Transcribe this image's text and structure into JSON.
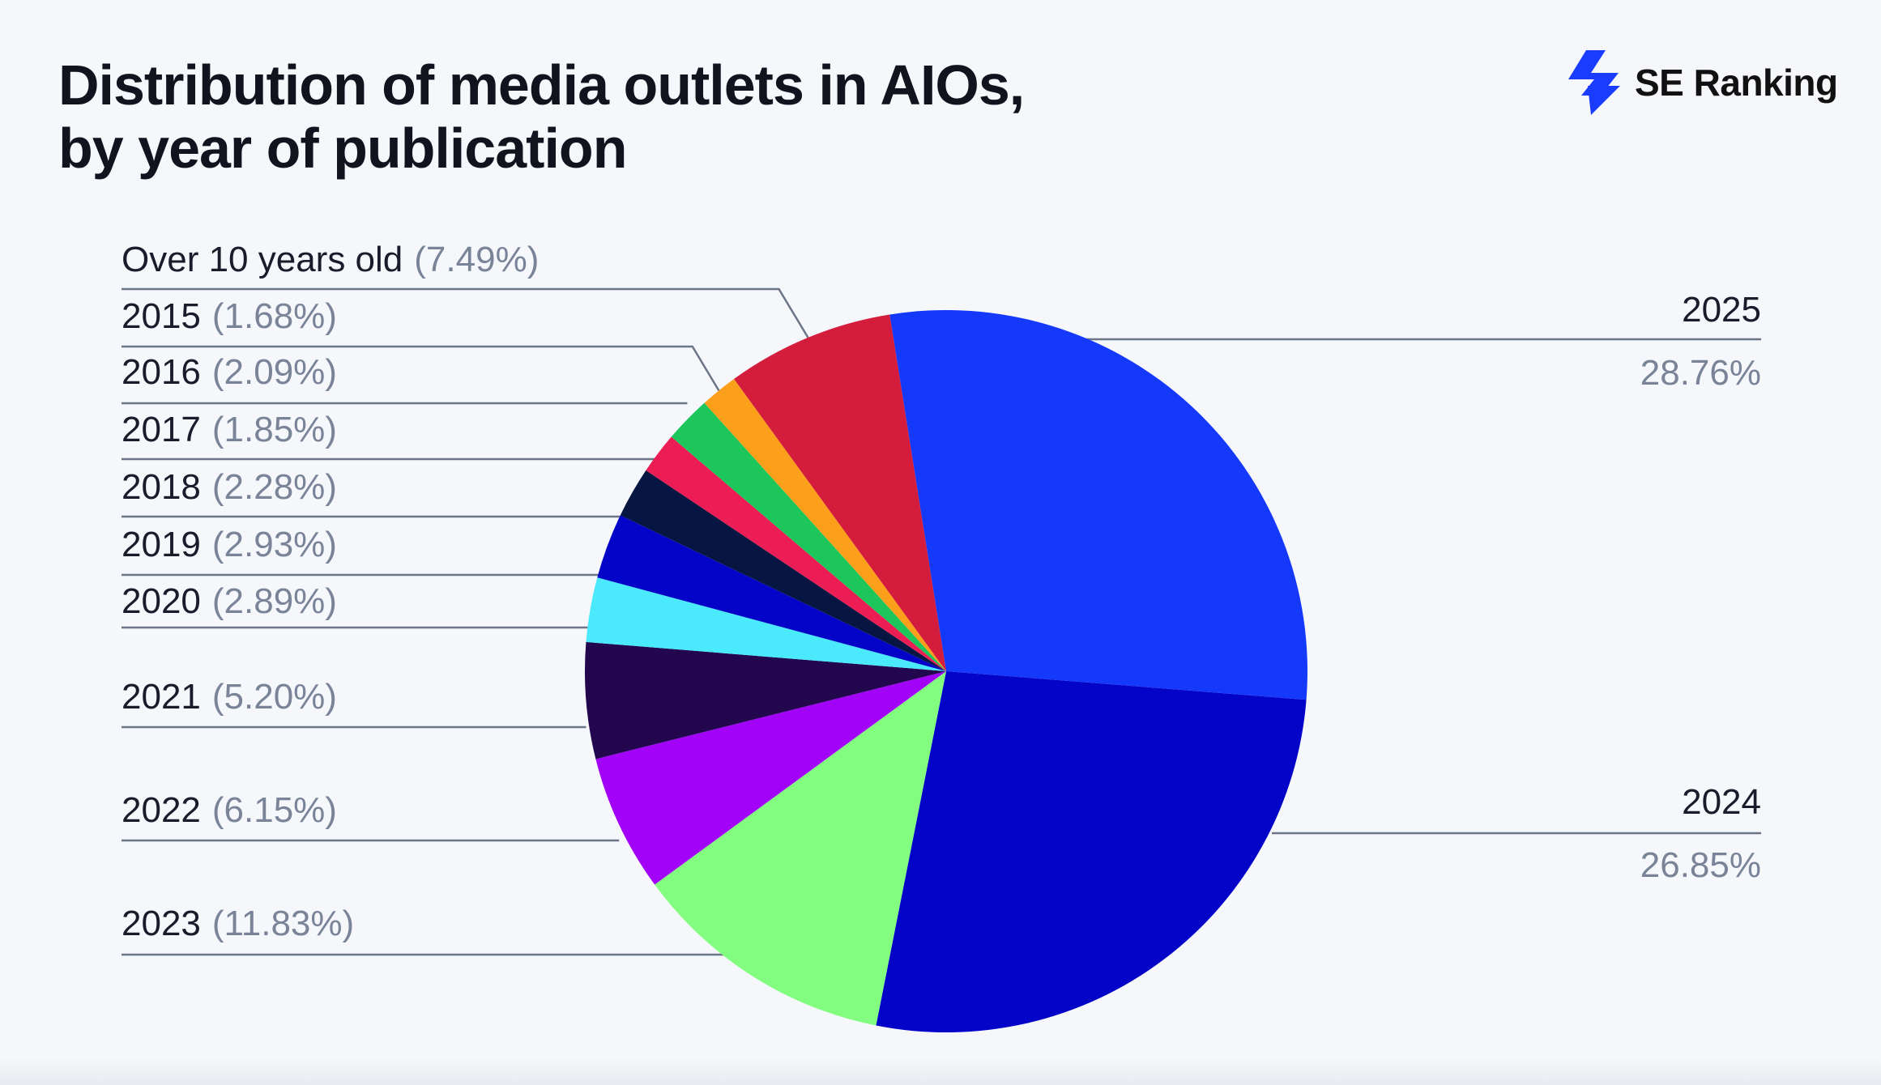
{
  "header": {
    "title_line1": "Distribution of media outlets in AIOs,",
    "title_line2": "by year of publication"
  },
  "brand": {
    "name": "SE Ranking",
    "icon": "se-ranking-logo-icon",
    "color": "#1a3cff"
  },
  "chart_data": {
    "type": "pie",
    "title": "Distribution of media outlets in AIOs, by year of publication",
    "unit": "%",
    "slices": [
      {
        "label": "2025",
        "value": 28.76,
        "display": "28.76%",
        "color": "#1539fb"
      },
      {
        "label": "2024",
        "value": 26.85,
        "display": "26.85%",
        "color": "#0404c8"
      },
      {
        "label": "2023",
        "value": 11.83,
        "display": "(11.83%)",
        "color": "#82fd80"
      },
      {
        "label": "2022",
        "value": 6.15,
        "display": "(6.15%)",
        "color": "#a202f8"
      },
      {
        "label": "2021",
        "value": 5.2,
        "display": "(5.20%)",
        "color": "#22064e"
      },
      {
        "label": "2020",
        "value": 2.89,
        "display": "(2.89%)",
        "color": "#4aeafc"
      },
      {
        "label": "2019",
        "value": 2.93,
        "display": "(2.93%)",
        "color": "#0404c8"
      },
      {
        "label": "2018",
        "value": 2.28,
        "display": "(2.28%)",
        "color": "#071542"
      },
      {
        "label": "2017",
        "value": 1.85,
        "display": "(1.85%)",
        "color": "#ec1c55"
      },
      {
        "label": "2016",
        "value": 2.09,
        "display": "(2.09%)",
        "color": "#1cc65b"
      },
      {
        "label": "2015",
        "value": 1.68,
        "display": "(1.68%)",
        "color": "#fca01c"
      },
      {
        "label": "Over 10 years old",
        "value": 7.49,
        "display": "(7.49%)",
        "color": "#d41c3c"
      }
    ],
    "legend_placement": "leader-lines left and right"
  }
}
